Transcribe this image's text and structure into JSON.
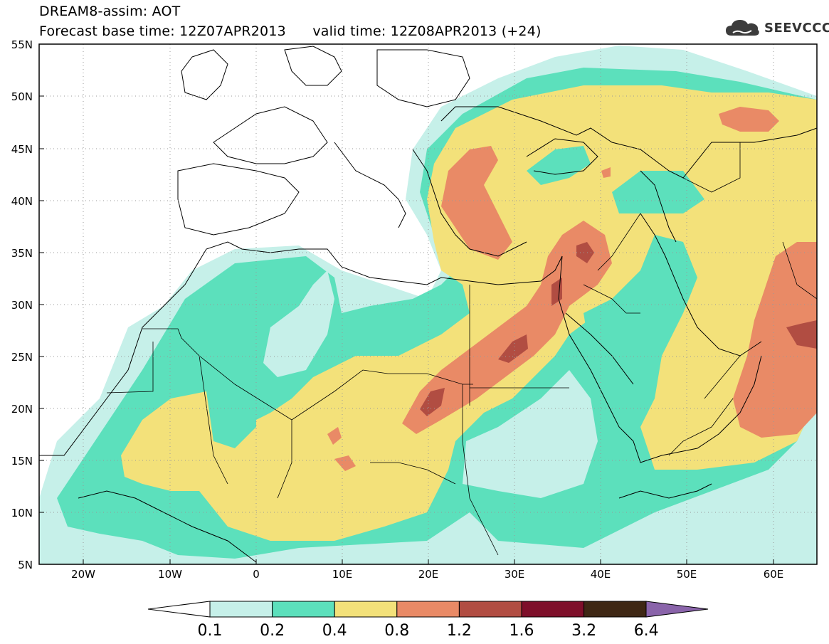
{
  "header": {
    "title": "DREAM8-assim: AOT",
    "base_time_label": "Forecast base time: 12Z07APR2013",
    "valid_time_label": "valid time: 12Z08APR2013 (+24)"
  },
  "logo": {
    "text": "SEEVCCC",
    "icon": "cloud-icon"
  },
  "map": {
    "variable": "AOT",
    "lon_range": [
      -25,
      65
    ],
    "lat_range": [
      5,
      55
    ],
    "x_ticks": [
      "20W",
      "10W",
      "0",
      "10E",
      "20E",
      "30E",
      "40E",
      "50E",
      "60E"
    ],
    "y_ticks": [
      "55N",
      "50N",
      "45N",
      "40N",
      "35N",
      "30N",
      "25N",
      "20N",
      "15N",
      "10N",
      "5N"
    ],
    "grid": "dotted"
  },
  "colorbar": {
    "levels": [
      "0.1",
      "0.2",
      "0.4",
      "0.8",
      "1.2",
      "1.6",
      "3.2",
      "6.4"
    ],
    "colors": [
      "#c6f0e9",
      "#5ce0bc",
      "#f3e17a",
      "#e98a66",
      "#b14d42",
      "#7e0f2a",
      "#3e2714",
      "#8a64aa"
    ],
    "under_color": "#ffffff"
  },
  "regions": [
    {
      "level": "0.1-0.2",
      "color": "#c6f0e9"
    },
    {
      "level": "0.2-0.4",
      "color": "#5ce0bc"
    },
    {
      "level": "0.4-0.8",
      "color": "#f3e17a"
    },
    {
      "level": "0.8-1.2",
      "color": "#e98a66"
    },
    {
      "level": "1.2-1.6",
      "color": "#b14d42"
    }
  ]
}
